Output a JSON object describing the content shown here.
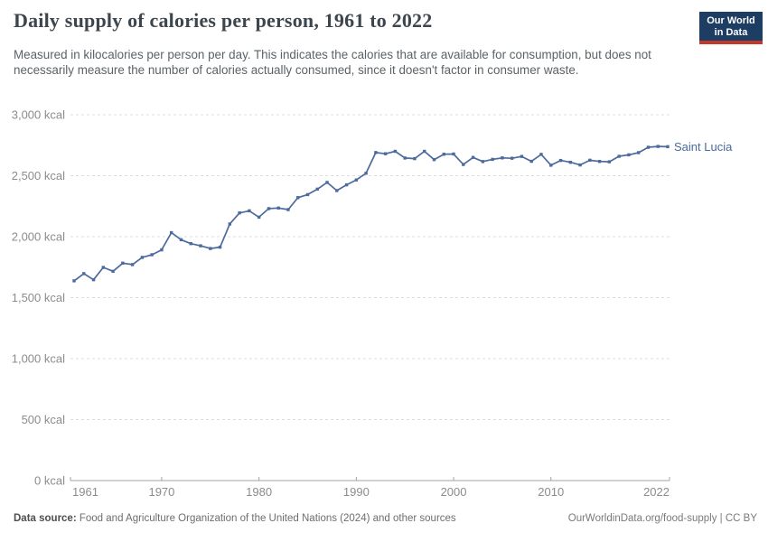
{
  "header": {
    "title": "Daily supply of calories per person, 1961 to 2022",
    "subtitle": "Measured in kilocalories per person per day. This indicates the calories that are available for consumption, but does not necessarily measure the number of calories actually consumed, since it doesn't factor in consumer waste.",
    "logo": {
      "line1": "Our World",
      "line2": "in Data"
    }
  },
  "footer": {
    "source_label": "Data source:",
    "source_text": " Food and Agriculture Organization of the United Nations (2024) and other sources",
    "link_text": "OurWorldinData.org/food-supply | CC BY"
  },
  "colors": {
    "line": "#4C6A9C",
    "entity_label": "#4C6A9C",
    "logo_navy": "#1d3d63",
    "logo_red": "#c0392b",
    "grid": "#dcdcdc",
    "axis": "#a3a3a3",
    "tick_text": "#8c8c8c"
  },
  "chart_data": {
    "type": "line",
    "title": "Daily supply of calories per person, 1961 to 2022",
    "entity_label": "Saint Lucia",
    "unit": "kcal",
    "xlabel": "",
    "ylabel": "",
    "xlim": [
      1961,
      2022
    ],
    "ylim": [
      0,
      3000
    ],
    "xticks": [
      1961,
      1970,
      1980,
      1990,
      2000,
      2010,
      2022
    ],
    "yticks": [
      0,
      500,
      1000,
      1500,
      2000,
      2500,
      3000
    ],
    "ytick_suffix": " kcal",
    "grid": "horizontal-dashed",
    "legend_position": "end-of-line",
    "x": [
      1961,
      1962,
      1963,
      1964,
      1965,
      1966,
      1967,
      1968,
      1969,
      1970,
      1971,
      1972,
      1973,
      1974,
      1975,
      1976,
      1977,
      1978,
      1979,
      1980,
      1981,
      1982,
      1983,
      1984,
      1985,
      1986,
      1987,
      1988,
      1989,
      1990,
      1991,
      1992,
      1993,
      1994,
      1995,
      1996,
      1997,
      1998,
      1999,
      2000,
      2001,
      2002,
      2003,
      2004,
      2005,
      2006,
      2007,
      2008,
      2009,
      2010,
      2011,
      2012,
      2013,
      2014,
      2015,
      2016,
      2017,
      2018,
      2019,
      2020,
      2021,
      2022
    ],
    "values": [
      1638,
      1697,
      1647,
      1748,
      1716,
      1783,
      1771,
      1830,
      1852,
      1892,
      2033,
      1975,
      1943,
      1925,
      1903,
      1914,
      2104,
      2195,
      2212,
      2160,
      2230,
      2235,
      2222,
      2320,
      2345,
      2390,
      2445,
      2378,
      2425,
      2465,
      2520,
      2690,
      2680,
      2700,
      2645,
      2640,
      2700,
      2632,
      2676,
      2678,
      2592,
      2650,
      2616,
      2634,
      2646,
      2643,
      2658,
      2618,
      2675,
      2586,
      2625,
      2610,
      2588,
      2627,
      2617,
      2614,
      2659,
      2671,
      2689,
      2733,
      2740,
      2738
    ]
  }
}
